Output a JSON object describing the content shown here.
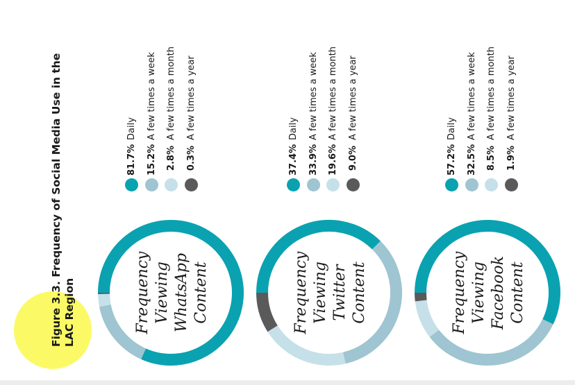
{
  "title": {
    "lines": [
      "Figure 3.3. Frequency of Social Media Use in the",
      "LAC Region"
    ]
  },
  "colors": {
    "daily": "#0aa2b0",
    "week": "#9ec5d1",
    "month": "#c5e0e8",
    "year": "#5a5a5a",
    "highlight": "#fbfa66"
  },
  "chart_data": [
    {
      "type": "pie",
      "center_label": [
        "Frequency",
        "Viewing",
        "WhatsApp",
        "Content"
      ],
      "slices": [
        {
          "name": "Daily",
          "value": 81.7,
          "label": "81.7%"
        },
        {
          "name": "A few times a week",
          "value": 15.2,
          "label": "15.2%"
        },
        {
          "name": "A few times a month",
          "value": 2.8,
          "label": "2.8%"
        },
        {
          "name": "A few times a year",
          "value": 0.3,
          "label": "0.3%"
        }
      ]
    },
    {
      "type": "pie",
      "center_label": [
        "Frequency",
        "Viewing",
        "Twitter",
        "Content"
      ],
      "slices": [
        {
          "name": "Daily",
          "value": 37.4,
          "label": "37.4%"
        },
        {
          "name": "A few times a week",
          "value": 33.9,
          "label": "33.9%"
        },
        {
          "name": "A few times a month",
          "value": 19.6,
          "label": "19.6%"
        },
        {
          "name": "A few times a year",
          "value": 9.0,
          "label": "9.0%"
        }
      ]
    },
    {
      "type": "pie",
      "center_label": [
        "Frequency",
        "Viewing",
        "Facebook",
        "Content"
      ],
      "slices": [
        {
          "name": "Daily",
          "value": 57.2,
          "label": "57.2%"
        },
        {
          "name": "A few times a week",
          "value": 32.5,
          "label": "32.5%"
        },
        {
          "name": "A few times a month",
          "value": 8.5,
          "label": "8.5%"
        },
        {
          "name": "A few times a year",
          "value": 1.9,
          "label": "1.9%"
        }
      ]
    }
  ]
}
